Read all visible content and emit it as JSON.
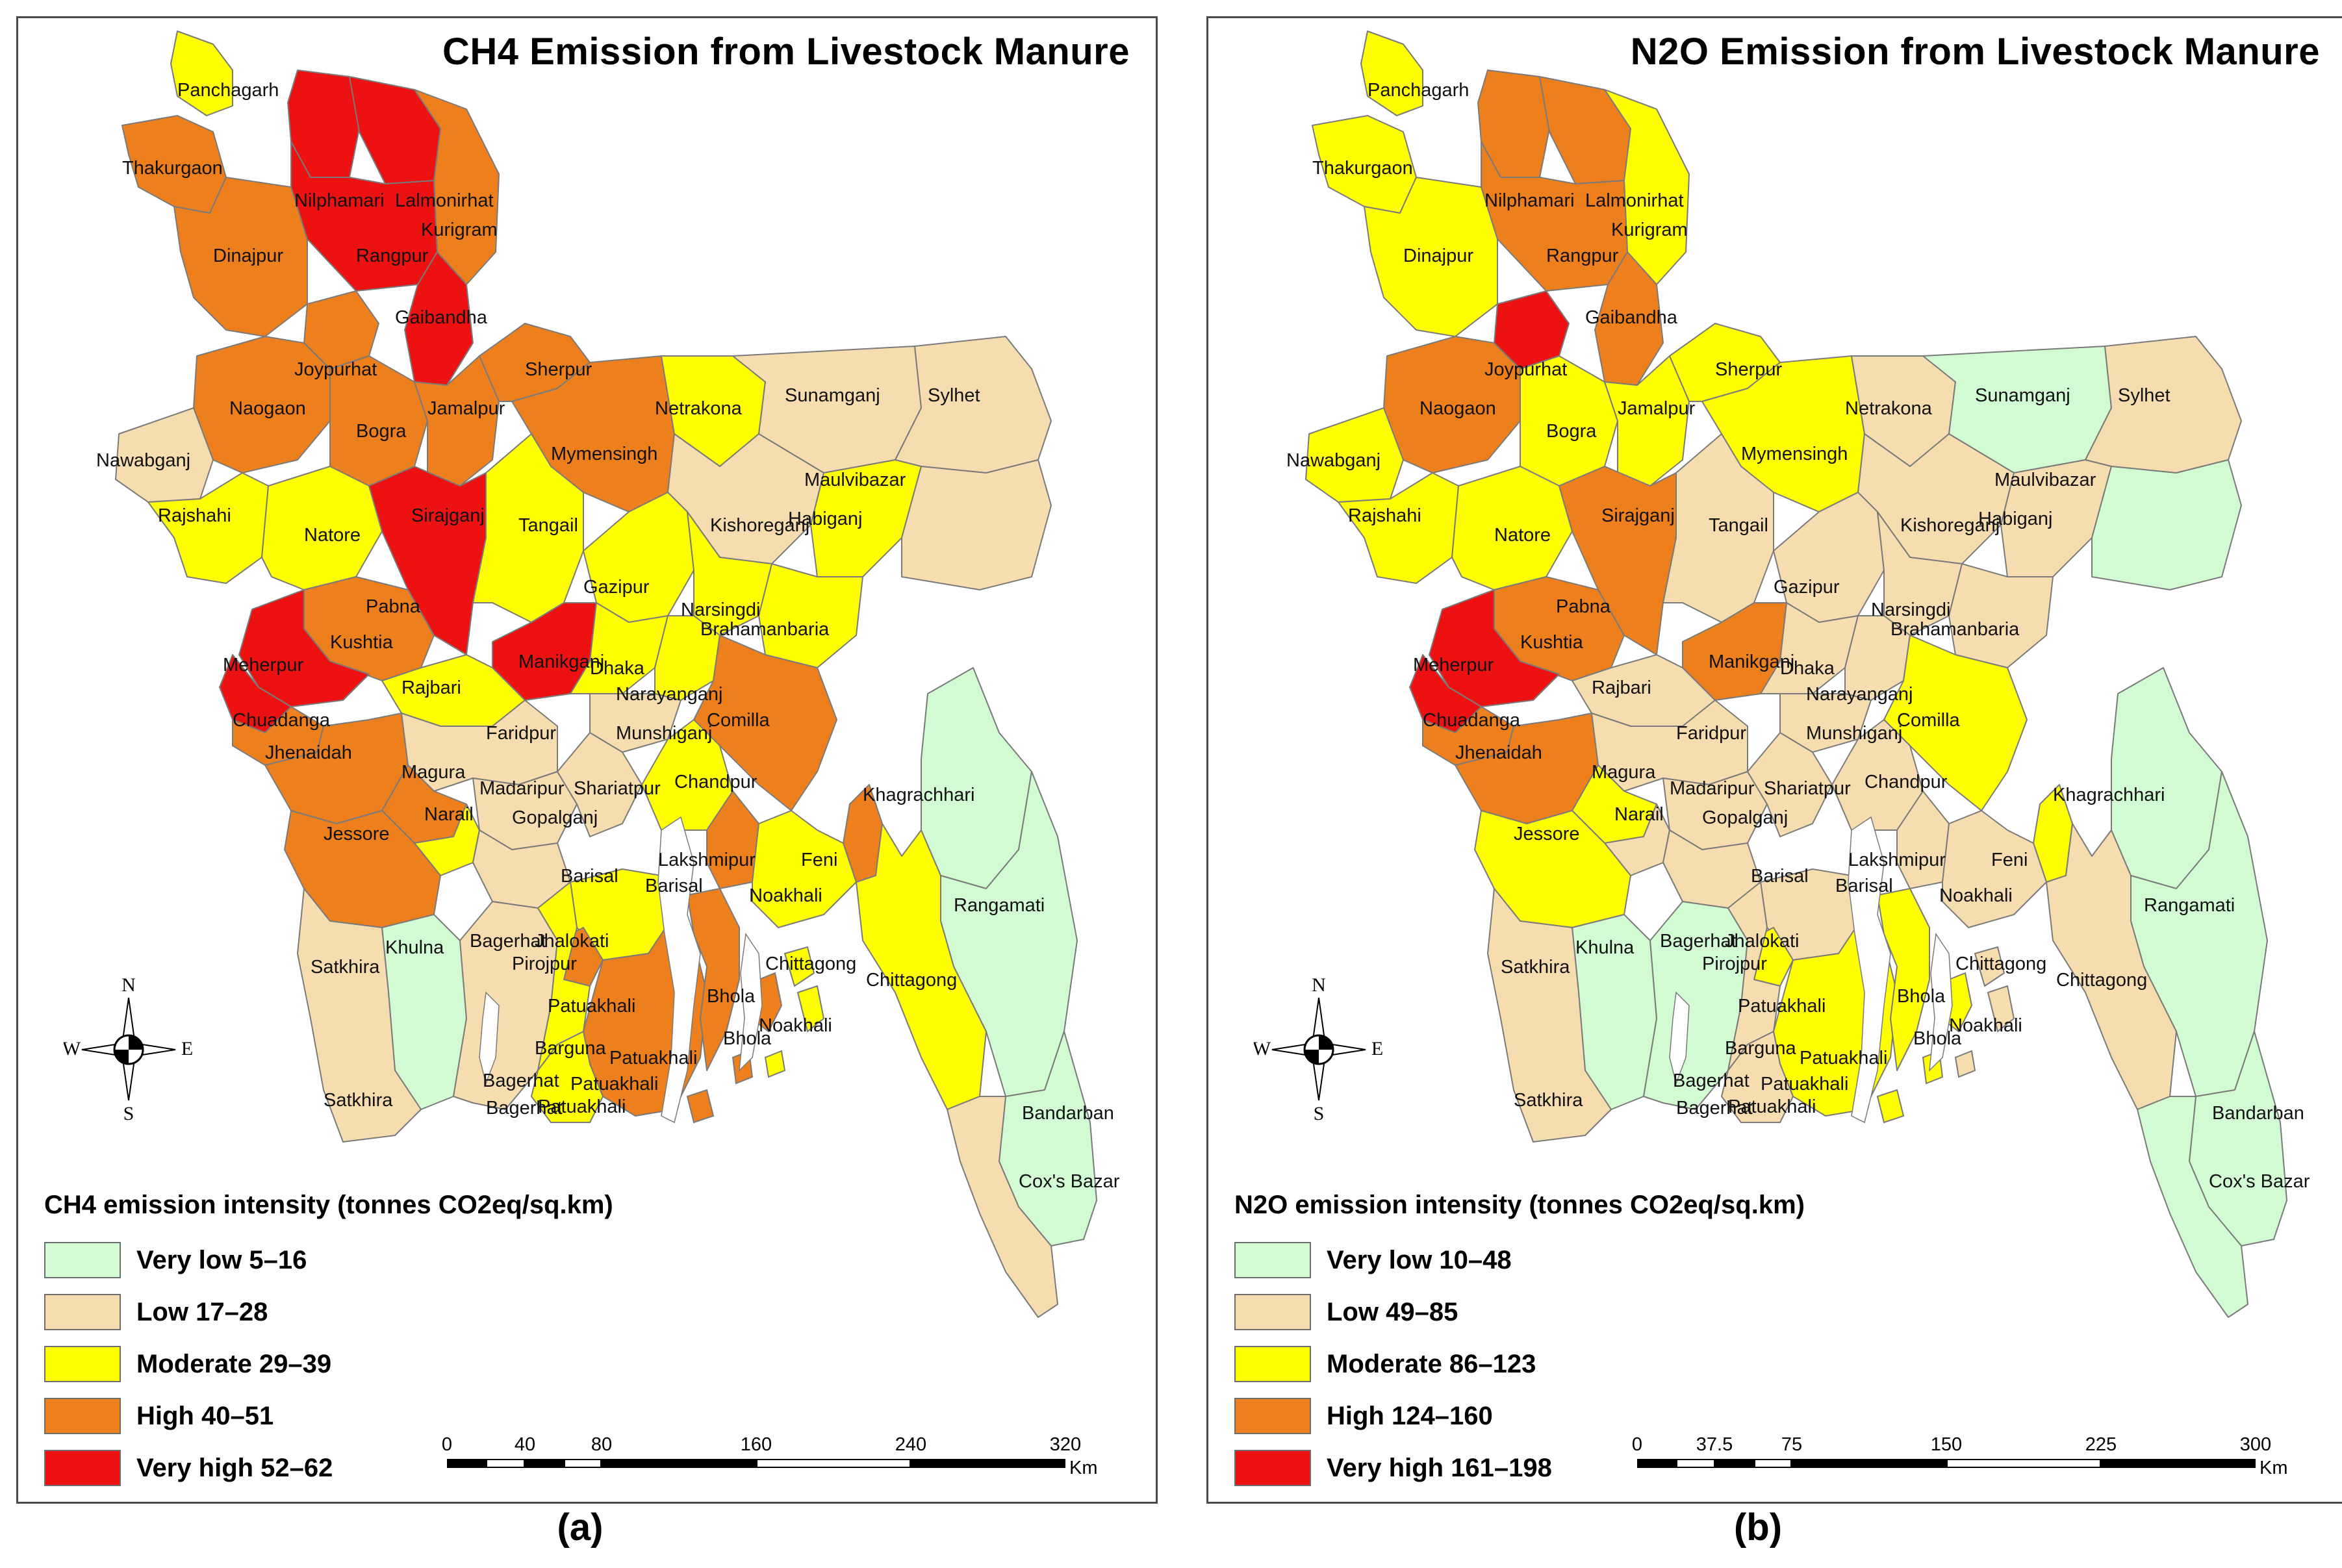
{
  "panels": [
    {
      "title": "CH4 Emission from Livestock Manure",
      "caption": "(a)",
      "legend": {
        "title": "CH4 emission intensity (tonnes CO2eq/sq.km)",
        "classes": [
          {
            "label": "Very low 5–16",
            "color": "#d3fbd3"
          },
          {
            "label": "Low 17–28",
            "color": "#f6ddb0"
          },
          {
            "label": "Moderate 29–39",
            "color": "#ffff00"
          },
          {
            "label": "High 40–51",
            "color": "#ee7f1d"
          },
          {
            "label": "Very high 52–62",
            "color": "#ee1111"
          }
        ]
      },
      "scale": {
        "ticks": [
          "0",
          "40",
          "80",
          "160",
          "240",
          "320"
        ],
        "unit": "Km"
      },
      "compass": {
        "n": "N",
        "s": "S",
        "e": "E",
        "w": "W"
      },
      "districts": {
        "panchagarh": {
          "name": "Panchagarh",
          "class": 2
        },
        "thakurgaon": {
          "name": "Thakurgaon",
          "class": 3
        },
        "nilphamari": {
          "name": "Nilphamari",
          "class": 4
        },
        "lalmonirhat": {
          "name": "Lalmonirhat",
          "class": 4
        },
        "kurigram": {
          "name": "Kurigram",
          "class": 3
        },
        "dinajpur": {
          "name": "Dinajpur",
          "class": 3
        },
        "rangpur": {
          "name": "Rangpur",
          "class": 4
        },
        "gaibandha": {
          "name": "Gaibandha",
          "class": 4
        },
        "joypurhat": {
          "name": "Joypurhat",
          "class": 3
        },
        "naogaon": {
          "name": "Naogaon",
          "class": 3
        },
        "bogra": {
          "name": "Bogra",
          "class": 3
        },
        "jamalpur": {
          "name": "Jamalpur",
          "class": 3
        },
        "sherpur": {
          "name": "Sherpur",
          "class": 3
        },
        "mymensingh": {
          "name": "Mymensingh",
          "class": 3
        },
        "netrakona": {
          "name": "Netrakona",
          "class": 2
        },
        "sunamganj": {
          "name": "Sunamganj",
          "class": 1
        },
        "sylhet": {
          "name": "Sylhet",
          "class": 1
        },
        "nawabganj": {
          "name": "Nawabganj",
          "class": 1
        },
        "rajshahi": {
          "name": "Rajshahi",
          "class": 2
        },
        "natore": {
          "name": "Natore",
          "class": 2
        },
        "sirajganj": {
          "name": "Sirajganj",
          "class": 4
        },
        "tangail": {
          "name": "Tangail",
          "class": 2
        },
        "kishoreganj": {
          "name": "Kishoreganj",
          "class": 1
        },
        "habiganj": {
          "name": "Habiganj",
          "class": 2
        },
        "maulvibazar": {
          "name": "Maulvibazar",
          "class": 1
        },
        "pabna": {
          "name": "Pabna",
          "class": 3
        },
        "gazipur": {
          "name": "Gazipur",
          "class": 2
        },
        "narsingdi": {
          "name": "Narsingdi",
          "class": 2
        },
        "brahamanbaria": {
          "name": "Brahamanbaria",
          "class": 2
        },
        "kushtia": {
          "name": "Kushtia",
          "class": 4
        },
        "meherpur": {
          "name": "Meherpur",
          "class": 4
        },
        "manikganj": {
          "name": "Manikganj",
          "class": 4
        },
        "dhaka": {
          "name": "Dhaka",
          "class": 2
        },
        "rajbari": {
          "name": "Rajbari",
          "class": 2
        },
        "narayanganj": {
          "name": "Narayanganj",
          "class": 2
        },
        "chuadanga": {
          "name": "Chuadanga",
          "class": 3
        },
        "jhenaidah": {
          "name": "Jhenaidah",
          "class": 3
        },
        "faridpur": {
          "name": "Faridpur",
          "class": 1
        },
        "munshiganj": {
          "name": "Munshiganj",
          "class": 1
        },
        "comilla": {
          "name": "Comilla",
          "class": 3
        },
        "magura": {
          "name": "Magura",
          "class": 3
        },
        "madaripur": {
          "name": "Madaripur",
          "class": 1
        },
        "shariatpur": {
          "name": "Shariatpur",
          "class": 1
        },
        "chandpur": {
          "name": "Chandpur",
          "class": 2
        },
        "narail": {
          "name": "Narail",
          "class": 2
        },
        "gopalganj": {
          "name": "Gopalganj",
          "class": 1
        },
        "jessore": {
          "name": "Jessore",
          "class": 3
        },
        "khagrachhari": {
          "name": "Khagrachhari",
          "class": 0
        },
        "feni": {
          "name": "Feni",
          "class": 3
        },
        "lakshmipur": {
          "name": "Lakshmipur",
          "class": 3
        },
        "barisal": {
          "name": "Barisal",
          "class": 2
        },
        "noakhali": {
          "name": "Noakhali",
          "class": 2
        },
        "khulna": {
          "name": "Khulna",
          "class": 0
        },
        "bagerhat": {
          "name": "Bagerhat",
          "class": 1
        },
        "jhalokati": {
          "name": "Jhalokati",
          "class": 3
        },
        "pirojpur": {
          "name": "Pirojpur",
          "class": 2
        },
        "satkhira": {
          "name": "Satkhira",
          "class": 1
        },
        "rangamati": {
          "name": "Rangamati",
          "class": 0
        },
        "chittagong": {
          "name": "Chittagong",
          "class": 2
        },
        "patuakhali": {
          "name": "Patuakhali",
          "class": 3
        },
        "bhola": {
          "name": "Bhola",
          "class": 3
        },
        "barguna": {
          "name": "Barguna",
          "class": 2
        },
        "bandarban": {
          "name": "Bandarban",
          "class": 0
        },
        "coxsbazar": {
          "name": "Cox's Bazar",
          "class": 1
        }
      },
      "extra_labels": {
        "bagerhat_2": "Bagerhat",
        "bagerhat_3": "Bagerhat",
        "satkhira_2": "Satkhira",
        "barisal_2": "Barisal",
        "chittagong_2": "Chittagong",
        "noakhali_2": "Noakhali",
        "bhola_2": "Bhola",
        "patuakhali_2": "Patuakhali",
        "patuakhali_3": "Patuakhali",
        "patuakhali_4": "Patuakhali"
      }
    },
    {
      "title": "N2O Emission from Livestock Manure",
      "caption": "(b)",
      "legend": {
        "title": "N2O emission intensity (tonnes CO2eq/sq.km)",
        "classes": [
          {
            "label": "Very low 10–48",
            "color": "#d3fbd3"
          },
          {
            "label": "Low 49–85",
            "color": "#f6ddb0"
          },
          {
            "label": "Moderate 86–123",
            "color": "#ffff00"
          },
          {
            "label": "High 124–160",
            "color": "#ee7f1d"
          },
          {
            "label": "Very high 161–198",
            "color": "#ee1111"
          }
        ]
      },
      "scale": {
        "ticks": [
          "0",
          "37.5",
          "75",
          "150",
          "225",
          "300"
        ],
        "unit": "Km"
      },
      "compass": {
        "n": "N",
        "s": "S",
        "e": "E",
        "w": "W"
      },
      "districts": {
        "panchagarh": {
          "name": "Panchagarh",
          "class": 2
        },
        "thakurgaon": {
          "name": "Thakurgaon",
          "class": 2
        },
        "nilphamari": {
          "name": "Nilphamari",
          "class": 3
        },
        "lalmonirhat": {
          "name": "Lalmonirhat",
          "class": 3
        },
        "kurigram": {
          "name": "Kurigram",
          "class": 2
        },
        "dinajpur": {
          "name": "Dinajpur",
          "class": 2
        },
        "rangpur": {
          "name": "Rangpur",
          "class": 3
        },
        "gaibandha": {
          "name": "Gaibandha",
          "class": 3
        },
        "joypurhat": {
          "name": "Joypurhat",
          "class": 4
        },
        "naogaon": {
          "name": "Naogaon",
          "class": 3
        },
        "bogra": {
          "name": "Bogra",
          "class": 2
        },
        "jamalpur": {
          "name": "Jamalpur",
          "class": 2
        },
        "sherpur": {
          "name": "Sherpur",
          "class": 2
        },
        "mymensingh": {
          "name": "Mymensingh",
          "class": 2
        },
        "netrakona": {
          "name": "Netrakona",
          "class": 1
        },
        "sunamganj": {
          "name": "Sunamganj",
          "class": 0
        },
        "sylhet": {
          "name": "Sylhet",
          "class": 1
        },
        "nawabganj": {
          "name": "Nawabganj",
          "class": 2
        },
        "rajshahi": {
          "name": "Rajshahi",
          "class": 2
        },
        "natore": {
          "name": "Natore",
          "class": 2
        },
        "sirajganj": {
          "name": "Sirajganj",
          "class": 3
        },
        "tangail": {
          "name": "Tangail",
          "class": 1
        },
        "kishoreganj": {
          "name": "Kishoreganj",
          "class": 1
        },
        "habiganj": {
          "name": "Habiganj",
          "class": 1
        },
        "maulvibazar": {
          "name": "Maulvibazar",
          "class": 0
        },
        "pabna": {
          "name": "Pabna",
          "class": 3
        },
        "gazipur": {
          "name": "Gazipur",
          "class": 1
        },
        "narsingdi": {
          "name": "Narsingdi",
          "class": 1
        },
        "brahamanbaria": {
          "name": "Brahamanbaria",
          "class": 1
        },
        "kushtia": {
          "name": "Kushtia",
          "class": 4
        },
        "meherpur": {
          "name": "Meherpur",
          "class": 4
        },
        "manikganj": {
          "name": "Manikganj",
          "class": 3
        },
        "dhaka": {
          "name": "Dhaka",
          "class": 1
        },
        "rajbari": {
          "name": "Rajbari",
          "class": 1
        },
        "narayanganj": {
          "name": "Narayanganj",
          "class": 1
        },
        "chuadanga": {
          "name": "Chuadanga",
          "class": 3
        },
        "jhenaidah": {
          "name": "Jhenaidah",
          "class": 3
        },
        "faridpur": {
          "name": "Faridpur",
          "class": 1
        },
        "munshiganj": {
          "name": "Munshiganj",
          "class": 1
        },
        "comilla": {
          "name": "Comilla",
          "class": 2
        },
        "magura": {
          "name": "Magura",
          "class": 2
        },
        "madaripur": {
          "name": "Madaripur",
          "class": 1
        },
        "shariatpur": {
          "name": "Shariatpur",
          "class": 1
        },
        "chandpur": {
          "name": "Chandpur",
          "class": 1
        },
        "narail": {
          "name": "Narail",
          "class": 1
        },
        "gopalganj": {
          "name": "Gopalganj",
          "class": 1
        },
        "jessore": {
          "name": "Jessore",
          "class": 2
        },
        "khagrachhari": {
          "name": "Khagrachhari",
          "class": 0
        },
        "feni": {
          "name": "Feni",
          "class": 2
        },
        "lakshmipur": {
          "name": "Lakshmipur",
          "class": 1
        },
        "barisal": {
          "name": "Barisal",
          "class": 1
        },
        "noakhali": {
          "name": "Noakhali",
          "class": 1
        },
        "khulna": {
          "name": "Khulna",
          "class": 0
        },
        "bagerhat": {
          "name": "Bagerhat",
          "class": 0
        },
        "jhalokati": {
          "name": "Jhalokati",
          "class": 2
        },
        "pirojpur": {
          "name": "Pirojpur",
          "class": 1
        },
        "satkhira": {
          "name": "Satkhira",
          "class": 1
        },
        "rangamati": {
          "name": "Rangamati",
          "class": 0
        },
        "chittagong": {
          "name": "Chittagong",
          "class": 1
        },
        "patuakhali": {
          "name": "Patuakhali",
          "class": 2
        },
        "bhola": {
          "name": "Bhola",
          "class": 2
        },
        "barguna": {
          "name": "Barguna",
          "class": 1
        },
        "bandarban": {
          "name": "Bandarban",
          "class": 0
        },
        "coxsbazar": {
          "name": "Cox's Bazar",
          "class": 0
        }
      },
      "extra_labels": {
        "bagerhat_2": "Bagerhat",
        "bagerhat_3": "Bagerhat",
        "satkhira_2": "Satkhira",
        "barisal_2": "Barisal",
        "chittagong_2": "Chittagong",
        "noakhali_2": "Noakhali",
        "bhola_2": "Bhola",
        "patuakhali_2": "Patuakhali",
        "patuakhali_3": "Patuakhali",
        "patuakhali_4": "Patuakhali"
      }
    }
  ]
}
